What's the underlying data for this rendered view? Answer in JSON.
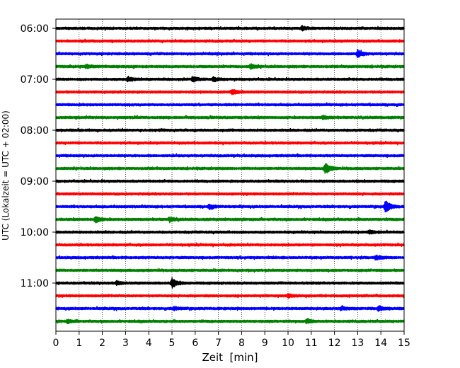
{
  "chart_data": {
    "type": "line",
    "title": "",
    "xlabel": "Zeit  [min]",
    "ylabel": "UTC (Lokalzeit = UTC + 02:00)",
    "xlim": [
      0,
      15
    ],
    "x_ticks": [
      0,
      1,
      2,
      3,
      4,
      5,
      6,
      7,
      8,
      9,
      10,
      11,
      12,
      13,
      14,
      15
    ],
    "y_tick_labels": [
      "06:00",
      "07:00",
      "08:00",
      "09:00",
      "10:00",
      "11:00"
    ],
    "traces_per_hour": 4,
    "trace_minutes": 15,
    "vertical_grid": true,
    "grid_style": "dotted",
    "colors": [
      "#000000",
      "#ff0000",
      "#0000ff",
      "#008000"
    ],
    "traces": [
      {
        "start": "06:00",
        "color": "#000000",
        "events": [
          {
            "t": 10.6,
            "amp": 2.5
          }
        ]
      },
      {
        "start": "06:15",
        "color": "#ff0000",
        "events": []
      },
      {
        "start": "06:30",
        "color": "#0000ff",
        "events": [
          {
            "t": 13.0,
            "amp": 5
          }
        ]
      },
      {
        "start": "06:45",
        "color": "#008000",
        "events": [
          {
            "t": 8.4,
            "amp": 3
          },
          {
            "t": 1.3,
            "amp": 2
          }
        ]
      },
      {
        "start": "07:00",
        "color": "#000000",
        "events": [
          {
            "t": 3.1,
            "amp": 3
          },
          {
            "t": 5.9,
            "amp": 3
          },
          {
            "t": 6.8,
            "amp": 3
          }
        ]
      },
      {
        "start": "07:15",
        "color": "#ff0000",
        "events": [
          {
            "t": 7.6,
            "amp": 3
          }
        ]
      },
      {
        "start": "07:30",
        "color": "#0000ff",
        "events": []
      },
      {
        "start": "07:45",
        "color": "#008000",
        "events": [
          {
            "t": 11.5,
            "amp": 2
          }
        ]
      },
      {
        "start": "08:00",
        "color": "#000000",
        "events": []
      },
      {
        "start": "08:15",
        "color": "#ff0000",
        "events": []
      },
      {
        "start": "08:30",
        "color": "#0000ff",
        "events": []
      },
      {
        "start": "08:45",
        "color": "#008000",
        "events": [
          {
            "t": 11.6,
            "amp": 7
          }
        ]
      },
      {
        "start": "09:00",
        "color": "#000000",
        "events": []
      },
      {
        "start": "09:15",
        "color": "#ff0000",
        "events": []
      },
      {
        "start": "09:30",
        "color": "#0000ff",
        "events": [
          {
            "t": 14.2,
            "amp": 8
          },
          {
            "t": 6.6,
            "amp": 3
          }
        ]
      },
      {
        "start": "09:45",
        "color": "#008000",
        "events": [
          {
            "t": 1.7,
            "amp": 4
          },
          {
            "t": 4.9,
            "amp": 3
          }
        ]
      },
      {
        "start": "10:00",
        "color": "#000000",
        "events": [
          {
            "t": 13.5,
            "amp": 2
          }
        ]
      },
      {
        "start": "10:15",
        "color": "#ff0000",
        "events": []
      },
      {
        "start": "10:30",
        "color": "#0000ff",
        "events": [
          {
            "t": 13.8,
            "amp": 3
          }
        ]
      },
      {
        "start": "10:45",
        "color": "#008000",
        "events": []
      },
      {
        "start": "11:00",
        "color": "#000000",
        "events": [
          {
            "t": 5.0,
            "amp": 6
          },
          {
            "t": 2.6,
            "amp": 2
          }
        ]
      },
      {
        "start": "11:15",
        "color": "#ff0000",
        "events": [
          {
            "t": 10.0,
            "amp": 2
          }
        ]
      },
      {
        "start": "11:30",
        "color": "#0000ff",
        "events": [
          {
            "t": 12.3,
            "amp": 2
          },
          {
            "t": 13.9,
            "amp": 3
          },
          {
            "t": 5.1,
            "amp": 2
          }
        ]
      },
      {
        "start": "11:45",
        "color": "#008000",
        "events": [
          {
            "t": 10.8,
            "amp": 3
          },
          {
            "t": 0.5,
            "amp": 2
          }
        ]
      }
    ]
  }
}
